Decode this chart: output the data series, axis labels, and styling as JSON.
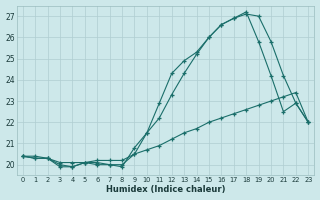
{
  "xlabel": "Humidex (Indice chaleur)",
  "bg_color": "#cde8ea",
  "grid_color": "#b0ced1",
  "line_color": "#1a6e6a",
  "xlim": [
    -0.5,
    23.5
  ],
  "ylim": [
    19.5,
    27.5
  ],
  "yticks": [
    20,
    21,
    22,
    23,
    24,
    25,
    26,
    27
  ],
  "xticks": [
    0,
    1,
    2,
    3,
    4,
    5,
    6,
    7,
    8,
    9,
    10,
    11,
    12,
    13,
    14,
    15,
    16,
    17,
    18,
    19,
    20,
    21,
    22,
    23
  ],
  "line1_x": [
    0,
    1,
    2,
    3,
    4,
    5,
    6,
    7,
    8,
    9,
    10,
    11,
    12,
    13,
    14,
    15,
    16,
    17,
    18,
    19,
    20,
    21,
    22,
    23
  ],
  "line1_y": [
    20.4,
    20.4,
    20.3,
    20.1,
    20.1,
    20.1,
    20.2,
    20.2,
    20.2,
    20.5,
    20.7,
    20.9,
    21.2,
    21.5,
    21.7,
    22.0,
    22.2,
    22.4,
    22.6,
    22.8,
    23.0,
    23.2,
    23.4,
    22.0
  ],
  "line2_x": [
    0,
    1,
    2,
    3,
    4,
    5,
    6,
    7,
    8,
    9,
    10,
    11,
    12,
    13,
    14,
    15,
    16,
    17,
    18,
    19,
    20,
    21,
    22,
    23
  ],
  "line2_y": [
    20.4,
    20.3,
    20.3,
    20.0,
    19.9,
    20.1,
    20.1,
    20.0,
    20.0,
    20.5,
    21.5,
    22.2,
    23.3,
    24.3,
    25.2,
    26.0,
    26.6,
    26.9,
    27.2,
    25.8,
    24.2,
    22.5,
    22.9,
    22.0
  ],
  "line3_x": [
    0,
    1,
    2,
    3,
    4,
    5,
    6,
    7,
    8,
    9,
    10,
    11,
    12,
    13,
    14,
    15,
    16,
    17,
    18,
    19,
    20,
    21,
    22,
    23
  ],
  "line3_y": [
    20.4,
    20.3,
    20.3,
    19.9,
    19.9,
    20.1,
    20.0,
    20.0,
    19.9,
    20.8,
    21.5,
    22.9,
    24.3,
    24.9,
    25.3,
    26.0,
    26.6,
    26.9,
    27.1,
    27.0,
    25.8,
    24.2,
    22.9,
    22.0
  ]
}
